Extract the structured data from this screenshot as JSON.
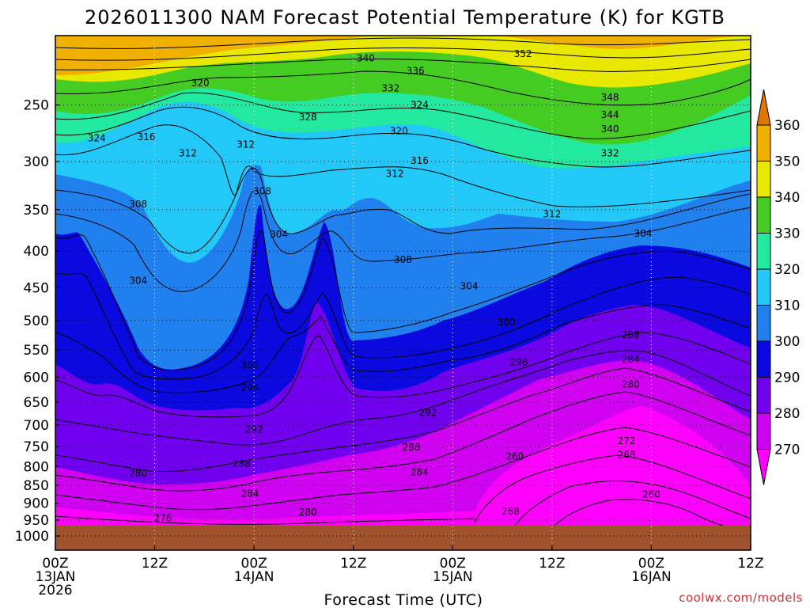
{
  "chart_data": {
    "type": "heatmap",
    "title": "2026011300 NAM Forecast Potential Temperature (K) for KGTB",
    "xlabel": "Forecast Time (UTC)",
    "ylabel": "",
    "credit": "coolwx.com/models",
    "x_range_hours": [
      0,
      84
    ],
    "y_range_hpa": [
      1000,
      200
    ],
    "y_ticks": [
      250,
      300,
      350,
      400,
      450,
      500,
      550,
      600,
      650,
      700,
      750,
      800,
      850,
      900,
      950,
      1000
    ],
    "x_ticks": [
      {
        "hour": 0,
        "lines": [
          "00Z",
          "13JAN",
          "2026"
        ]
      },
      {
        "hour": 12,
        "lines": [
          "12Z"
        ]
      },
      {
        "hour": 24,
        "lines": [
          "00Z",
          "14JAN"
        ]
      },
      {
        "hour": 36,
        "lines": [
          "12Z"
        ]
      },
      {
        "hour": 48,
        "lines": [
          "00Z",
          "15JAN"
        ]
      },
      {
        "hour": 60,
        "lines": [
          "12Z"
        ]
      },
      {
        "hour": 72,
        "lines": [
          "00Z",
          "16JAN"
        ]
      },
      {
        "hour": 84,
        "lines": [
          "12Z"
        ]
      }
    ],
    "colorbar": {
      "levels": [
        360,
        350,
        340,
        330,
        320,
        310,
        300,
        290,
        280,
        270
      ],
      "colors": [
        "#e07800",
        "#f0b000",
        "#e8e800",
        "#44cc22",
        "#22e8a0",
        "#22c8f8",
        "#2080ee",
        "#0a0ae0",
        "#7000ee",
        "#d000f0",
        "#ff00ff"
      ]
    },
    "contour_interval_K": 2,
    "contour_labels": [
      {
        "hour": 37.5,
        "p": 215,
        "value": "340"
      },
      {
        "hour": 43.5,
        "p": 224,
        "value": "336"
      },
      {
        "hour": 40.5,
        "p": 237,
        "value": "332"
      },
      {
        "hour": 56.5,
        "p": 212,
        "value": "352"
      },
      {
        "hour": 17.5,
        "p": 233,
        "value": "320"
      },
      {
        "hour": 30.5,
        "p": 260,
        "value": "328"
      },
      {
        "hour": 44,
        "p": 250,
        "value": "324"
      },
      {
        "hour": 5,
        "p": 278,
        "value": "324"
      },
      {
        "hour": 11,
        "p": 277,
        "value": "316"
      },
      {
        "hour": 16,
        "p": 292,
        "value": "312"
      },
      {
        "hour": 23,
        "p": 284,
        "value": "312"
      },
      {
        "hour": 41.5,
        "p": 272,
        "value": "320"
      },
      {
        "hour": 44,
        "p": 299,
        "value": "316"
      },
      {
        "hour": 41,
        "p": 312,
        "value": "312"
      },
      {
        "hour": 67,
        "p": 244,
        "value": "348"
      },
      {
        "hour": 67,
        "p": 258,
        "value": "344"
      },
      {
        "hour": 67,
        "p": 270,
        "value": "340"
      },
      {
        "hour": 67,
        "p": 292,
        "value": "332"
      },
      {
        "hour": 10,
        "p": 344,
        "value": "308"
      },
      {
        "hour": 25,
        "p": 330,
        "value": "308"
      },
      {
        "hour": 27,
        "p": 379,
        "value": "304"
      },
      {
        "hour": 42,
        "p": 411,
        "value": "308"
      },
      {
        "hour": 60,
        "p": 355,
        "value": "312"
      },
      {
        "hour": 71,
        "p": 378,
        "value": "304"
      },
      {
        "hour": 10,
        "p": 440,
        "value": "304"
      },
      {
        "hour": 50,
        "p": 448,
        "value": "304"
      },
      {
        "hour": 54.5,
        "p": 503,
        "value": "300"
      },
      {
        "hour": 23.5,
        "p": 578,
        "value": "300"
      },
      {
        "hour": 56,
        "p": 572,
        "value": "296"
      },
      {
        "hour": 23.5,
        "p": 621,
        "value": "296"
      },
      {
        "hour": 45,
        "p": 673,
        "value": "292"
      },
      {
        "hour": 24,
        "p": 710,
        "value": "292"
      },
      {
        "hour": 43,
        "p": 752,
        "value": "288"
      },
      {
        "hour": 22.5,
        "p": 793,
        "value": "288"
      },
      {
        "hour": 44,
        "p": 815,
        "value": "284"
      },
      {
        "hour": 10,
        "p": 818,
        "value": "280"
      },
      {
        "hour": 23.5,
        "p": 873,
        "value": "284"
      },
      {
        "hour": 30.5,
        "p": 926,
        "value": "280"
      },
      {
        "hour": 13,
        "p": 944,
        "value": "276"
      },
      {
        "hour": 55,
        "p": 924,
        "value": "268"
      },
      {
        "hour": 55.5,
        "p": 774,
        "value": "260"
      },
      {
        "hour": 69.5,
        "p": 524,
        "value": "288"
      },
      {
        "hour": 69.5,
        "p": 567,
        "value": "284"
      },
      {
        "hour": 69.5,
        "p": 614,
        "value": "280"
      },
      {
        "hour": 69,
        "p": 737,
        "value": "272"
      },
      {
        "hour": 69,
        "p": 770,
        "value": "268"
      },
      {
        "hour": 72,
        "p": 875,
        "value": "260"
      }
    ]
  }
}
